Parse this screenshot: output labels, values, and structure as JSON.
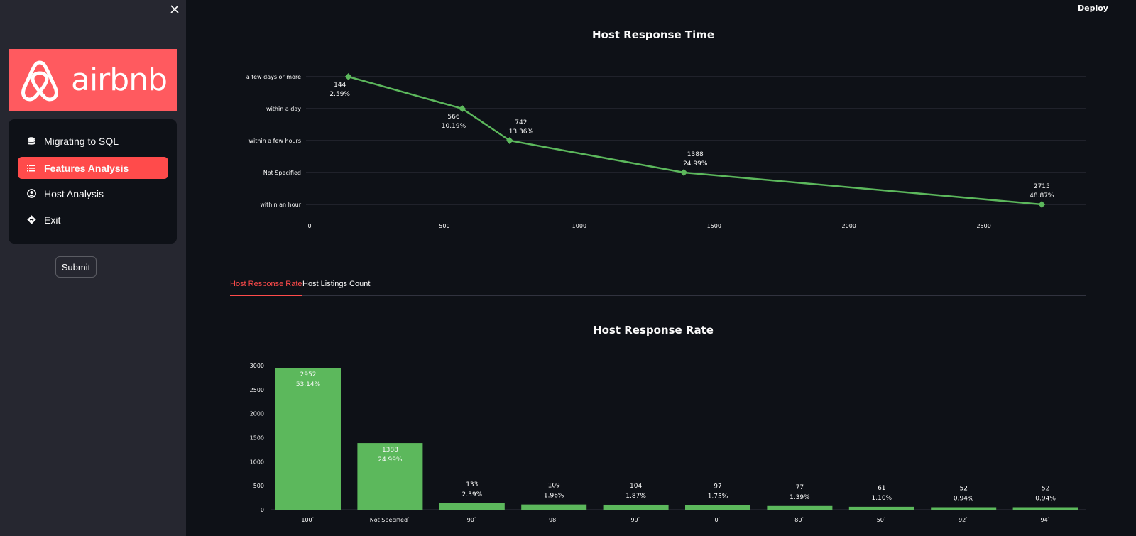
{
  "header": {
    "deploy_label": "Deploy"
  },
  "sidebar": {
    "logo_text": "airbnb",
    "menu": [
      {
        "label": "Migrating to SQL",
        "icon": "database-icon"
      },
      {
        "label": "Features Analysis",
        "icon": "list-icon",
        "active": true
      },
      {
        "label": "Host Analysis",
        "icon": "user-circle-icon"
      },
      {
        "label": "Exit",
        "icon": "exit-sign-icon"
      }
    ],
    "submit_label": "Submit"
  },
  "colors": {
    "accent": "#ff4b4b",
    "brand": "#ff5a5f",
    "series": "#5cb85c"
  },
  "tabs": [
    {
      "label": "Host Response Rate",
      "active": true
    },
    {
      "label": "Host Listings Count",
      "active": false
    }
  ],
  "chart_data": [
    {
      "type": "line",
      "title": "Host Response Time",
      "categories": [
        "a few days or more",
        "within a day",
        "within a few hours",
        "Not Specified",
        "within an hour"
      ],
      "values": [
        144,
        566,
        742,
        1388,
        2715
      ],
      "percents": [
        "2.59%",
        "10.19%",
        "13.36%",
        "24.99%",
        "48.87%"
      ],
      "xticks": [
        0,
        500,
        1000,
        1500,
        2000,
        2500
      ],
      "xlim": [
        0,
        2880
      ],
      "grid": true
    },
    {
      "type": "bar",
      "title": "Host Response Rate",
      "categories": [
        "100`",
        "Not Specified`",
        "90`",
        "98`",
        "99`",
        "0`",
        "80`",
        "50`",
        "92`",
        "94`"
      ],
      "values": [
        2952,
        1388,
        133,
        109,
        104,
        97,
        77,
        61,
        52,
        52
      ],
      "percents": [
        "53.14%",
        "24.99%",
        "2.39%",
        "1.96%",
        "1.87%",
        "1.75%",
        "1.39%",
        "1.10%",
        "0.94%",
        "0.94%"
      ],
      "yticks": [
        0,
        500,
        1000,
        1500,
        2000,
        2500,
        3000
      ],
      "ylim": [
        0,
        3000
      ]
    }
  ]
}
